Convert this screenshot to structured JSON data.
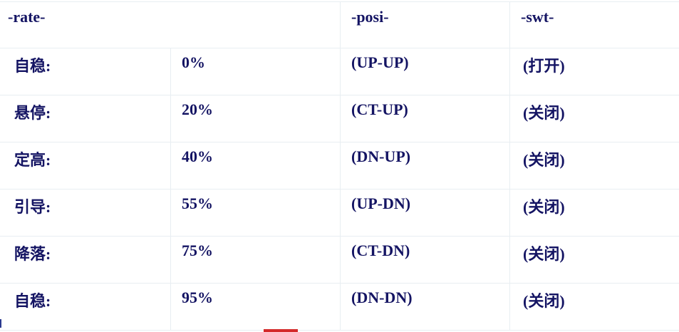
{
  "table": {
    "headers": {
      "rate": "-rate-",
      "posi": "-posi-",
      "swt": "-swt-"
    },
    "rows": [
      {
        "mode": "自稳:",
        "rate": "0%",
        "posi": "(UP-UP)",
        "swt": "(打开)"
      },
      {
        "mode": "悬停:",
        "rate": "20%",
        "posi": "(CT-UP)",
        "swt": "(关闭)"
      },
      {
        "mode": "定高:",
        "rate": "40%",
        "posi": "(DN-UP)",
        "swt": "(关闭)"
      },
      {
        "mode": "引导:",
        "rate": "55%",
        "posi": "(UP-DN)",
        "swt": "(关闭)"
      },
      {
        "mode": "降落:",
        "rate": "75%",
        "posi": "(CT-DN)",
        "swt": "(关闭)"
      },
      {
        "mode": "自稳:",
        "rate": "95%",
        "posi": "(DN-DN)",
        "swt": "(关闭)"
      }
    ]
  }
}
